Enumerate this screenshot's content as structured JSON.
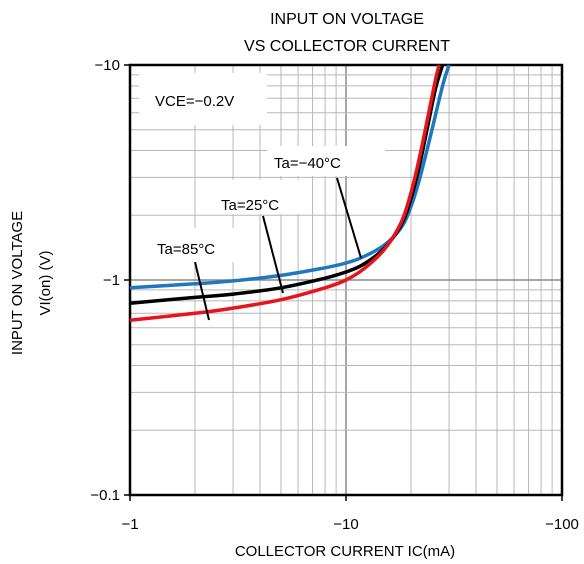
{
  "chart_data": {
    "type": "line",
    "title": [
      "INPUT ON VOLTAGE",
      "VS COLLECTOR CURRENT"
    ],
    "xlabel": "COLLECTOR CURRENT  IC(mA)",
    "ylabel": [
      "INPUT ON VOLTAGE",
      "VI(on) (V)"
    ],
    "x_scale": "log",
    "y_scale": "log",
    "xlim": [
      1,
      100
    ],
    "ylim": [
      0.1,
      10
    ],
    "x_ticks": [
      {
        "value": 1,
        "label": "−1"
      },
      {
        "value": 10,
        "label": "−10"
      },
      {
        "value": 100,
        "label": "−100"
      }
    ],
    "y_ticks": [
      {
        "value": 10,
        "label": "−10"
      },
      {
        "value": 1,
        "label": "−1"
      },
      {
        "value": 0.1,
        "label": "−0.1"
      }
    ],
    "grid": true,
    "annotation": "VCE=−0.2V",
    "series": [
      {
        "name": "Ta=−40°C",
        "color": "#1f77c0",
        "x": [
          1,
          2,
          3,
          5,
          8,
          10,
          12,
          15,
          18,
          20,
          22,
          25,
          28,
          30
        ],
        "y": [
          0.92,
          0.96,
          0.99,
          1.05,
          1.14,
          1.2,
          1.28,
          1.45,
          1.75,
          2.2,
          3.0,
          5.0,
          8.0,
          10.0
        ]
      },
      {
        "name": "Ta=25°C",
        "color": "#000000",
        "x": [
          1,
          2,
          3,
          5,
          8,
          10,
          12,
          15,
          18,
          20,
          22,
          24,
          26,
          28
        ],
        "y": [
          0.78,
          0.83,
          0.86,
          0.92,
          1.02,
          1.09,
          1.18,
          1.4,
          1.8,
          2.4,
          3.5,
          5.3,
          7.8,
          10.0
        ]
      },
      {
        "name": "Ta=85°C",
        "color": "#e8141c",
        "x": [
          1,
          2,
          3,
          5,
          8,
          10,
          12,
          15,
          18,
          20,
          22,
          24,
          26,
          27
        ],
        "y": [
          0.65,
          0.7,
          0.74,
          0.81,
          0.92,
          1.0,
          1.12,
          1.38,
          1.85,
          2.55,
          3.8,
          5.8,
          8.6,
          10.0
        ]
      }
    ]
  }
}
